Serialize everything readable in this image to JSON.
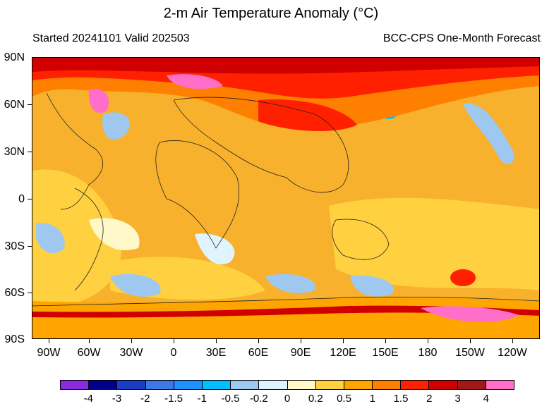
{
  "title": "2-m Air Temperature Anomaly (°C)",
  "subtitle_left": "Started 20241101  Valid 202503",
  "subtitle_right": "BCC-CPS One-Month Forecast",
  "lat_labels": [
    "90N",
    "60N",
    "30N",
    "0",
    "30S",
    "60S",
    "90S"
  ],
  "lon_labels": [
    "90W",
    "60W",
    "30W",
    "0",
    "30E",
    "60E",
    "90E",
    "120E",
    "150E",
    "180",
    "150W",
    "120W"
  ],
  "colorbar": {
    "colors": [
      "#8a2be2",
      "#00008b",
      "#1c3cc8",
      "#3c78e6",
      "#1e90ff",
      "#00bfff",
      "#9ec8f0",
      "#e0f4ff",
      "#fff8c8",
      "#ffd040",
      "#ffa500",
      "#ff7f00",
      "#ff2000",
      "#d00000",
      "#a01818",
      "#ff6ec8"
    ],
    "labels": [
      "-4",
      "-3",
      "-2",
      "-1.5",
      "-1",
      "-0.5",
      "-0.2",
      "0",
      "0.2",
      "0.5",
      "1",
      "1.5",
      "2",
      "3",
      "4"
    ]
  }
}
